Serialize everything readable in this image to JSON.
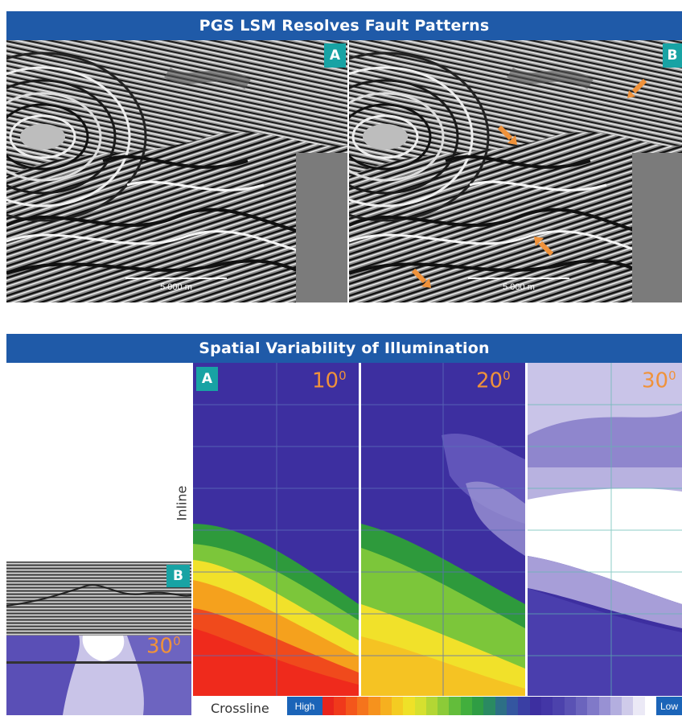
{
  "top_section": {
    "title": "PGS LSM Resolves Fault Patterns",
    "panel_a": {
      "tag": "A",
      "scale_label": "5 000 m"
    },
    "panel_b": {
      "tag": "B",
      "scale_label": "5 000 m",
      "arrow_count": 4,
      "arrow_color": "#f0923a"
    }
  },
  "bottom_section": {
    "title": "Spatial Variability of Illumination",
    "tag_a": "A",
    "tag_b": "B",
    "angles": [
      "10",
      "20",
      "30"
    ],
    "angle_unit": "0",
    "inset_angle": "30",
    "inline_label": "Inline",
    "crossline_label": "Crossline",
    "colorbar": {
      "high_label": "High",
      "low_label": "Low"
    }
  },
  "colors": {
    "banner": "#1f5aa8",
    "tag": "#18a3a4",
    "angle_text": "#f0923a",
    "illum_low": "#3d2fa0",
    "illum_high": "#ff2a1c"
  }
}
